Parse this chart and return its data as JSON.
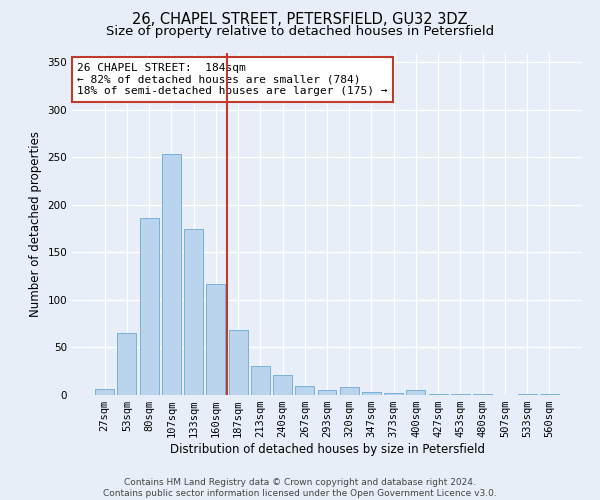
{
  "title1": "26, CHAPEL STREET, PETERSFIELD, GU32 3DZ",
  "title2": "Size of property relative to detached houses in Petersfield",
  "xlabel": "Distribution of detached houses by size in Petersfield",
  "ylabel": "Number of detached properties",
  "categories": [
    "27sqm",
    "53sqm",
    "80sqm",
    "107sqm",
    "133sqm",
    "160sqm",
    "187sqm",
    "213sqm",
    "240sqm",
    "267sqm",
    "293sqm",
    "320sqm",
    "347sqm",
    "373sqm",
    "400sqm",
    "427sqm",
    "453sqm",
    "480sqm",
    "507sqm",
    "533sqm",
    "560sqm"
  ],
  "values": [
    6,
    65,
    186,
    253,
    175,
    117,
    68,
    31,
    21,
    9,
    5,
    8,
    3,
    2,
    5,
    1,
    1,
    1,
    0,
    1,
    1
  ],
  "bar_color": "#bad4ee",
  "bar_edge_color": "#6aaad4",
  "vline_color": "#c0392b",
  "annotation_text": "26 CHAPEL STREET:  184sqm\n← 82% of detached houses are smaller (784)\n18% of semi-detached houses are larger (175) →",
  "annotation_box_color": "#ffffff",
  "annotation_box_edge": "#c0392b",
  "ylim": [
    0,
    360
  ],
  "yticks": [
    0,
    50,
    100,
    150,
    200,
    250,
    300,
    350
  ],
  "bg_color": "#e8eef8",
  "plot_bg_color": "#e8eef8",
  "footnote": "Contains HM Land Registry data © Crown copyright and database right 2024.\nContains public sector information licensed under the Open Government Licence v3.0.",
  "title1_fontsize": 10.5,
  "title2_fontsize": 9.5,
  "xlabel_fontsize": 8.5,
  "ylabel_fontsize": 8.5,
  "annotation_fontsize": 8,
  "footnote_fontsize": 6.5,
  "tick_fontsize": 7.5
}
